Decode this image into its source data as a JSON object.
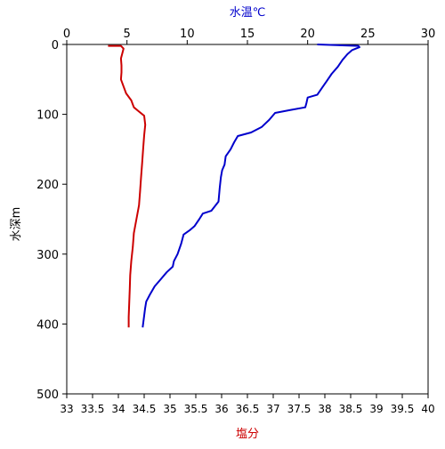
{
  "chart_data": {
    "type": "line",
    "orientation": "vertical-profile",
    "top_axis": {
      "label": "水温℃",
      "label_color": "#0000CC",
      "range": [
        0,
        30
      ],
      "ticks": [
        0,
        5,
        10,
        15,
        20,
        25,
        30
      ],
      "tick_labels": [
        "0",
        "5",
        "10",
        "15",
        "20",
        "25",
        "30"
      ]
    },
    "bottom_axis": {
      "label": "塩分",
      "label_color": "#CC0000",
      "range": [
        33,
        40
      ],
      "ticks": [
        33,
        33.5,
        34,
        34.5,
        35,
        35.5,
        36,
        36.5,
        37,
        37.5,
        38,
        38.5,
        39,
        39.5,
        40
      ],
      "tick_labels": [
        "33",
        "33.5",
        "34",
        "34.5",
        "35",
        "35.5",
        "36",
        "36.5",
        "37",
        "37.5",
        "38",
        "38.5",
        "39",
        "39.5",
        "40"
      ]
    },
    "left_axis": {
      "label": "水深m",
      "range": [
        0,
        500
      ],
      "inverted": true,
      "ticks": [
        0,
        100,
        200,
        300,
        400,
        500
      ],
      "tick_labels": [
        "0",
        "100",
        "200",
        "300",
        "400",
        "500"
      ]
    },
    "grid": false,
    "series": [
      {
        "color": "#0000CC",
        "axis": "top",
        "points": [
          [
            20.8,
            0
          ],
          [
            24.2,
            2
          ],
          [
            24.3,
            4
          ],
          [
            23.7,
            8
          ],
          [
            23.3,
            14
          ],
          [
            22.9,
            22
          ],
          [
            22.5,
            32
          ],
          [
            22.0,
            42
          ],
          [
            21.6,
            52
          ],
          [
            21.2,
            62
          ],
          [
            20.8,
            72
          ],
          [
            20.0,
            76
          ],
          [
            19.9,
            84
          ],
          [
            19.8,
            90
          ],
          [
            18.5,
            94
          ],
          [
            17.3,
            98
          ],
          [
            16.8,
            108
          ],
          [
            16.2,
            118
          ],
          [
            15.3,
            126
          ],
          [
            14.2,
            131
          ],
          [
            13.9,
            140
          ],
          [
            13.6,
            150
          ],
          [
            13.2,
            160
          ],
          [
            13.1,
            172
          ],
          [
            12.9,
            180
          ],
          [
            12.8,
            190
          ],
          [
            12.7,
            205
          ],
          [
            12.6,
            225
          ],
          [
            12.0,
            238
          ],
          [
            11.3,
            242
          ],
          [
            11.0,
            250
          ],
          [
            10.6,
            260
          ],
          [
            10.2,
            266
          ],
          [
            9.7,
            272
          ],
          [
            9.5,
            285
          ],
          [
            9.2,
            300
          ],
          [
            8.9,
            310
          ],
          [
            8.8,
            318
          ],
          [
            8.3,
            326
          ],
          [
            7.8,
            336
          ],
          [
            7.3,
            346
          ],
          [
            6.9,
            358
          ],
          [
            6.6,
            368
          ],
          [
            6.5,
            378
          ],
          [
            6.4,
            392
          ],
          [
            6.3,
            405
          ]
        ]
      },
      {
        "color": "#CC0000",
        "axis": "bottom",
        "points": [
          [
            33.8,
            2
          ],
          [
            34.05,
            2
          ],
          [
            34.1,
            6
          ],
          [
            34.08,
            12
          ],
          [
            34.05,
            20
          ],
          [
            34.06,
            30
          ],
          [
            34.06,
            40
          ],
          [
            34.05,
            50
          ],
          [
            34.1,
            60
          ],
          [
            34.15,
            70
          ],
          [
            34.25,
            80
          ],
          [
            34.3,
            90
          ],
          [
            34.4,
            96
          ],
          [
            34.5,
            102
          ],
          [
            34.52,
            115
          ],
          [
            34.5,
            130
          ],
          [
            34.48,
            150
          ],
          [
            34.46,
            170
          ],
          [
            34.44,
            190
          ],
          [
            34.42,
            210
          ],
          [
            34.4,
            230
          ],
          [
            34.35,
            250
          ],
          [
            34.3,
            270
          ],
          [
            34.28,
            290
          ],
          [
            34.25,
            310
          ],
          [
            34.23,
            330
          ],
          [
            34.22,
            350
          ],
          [
            34.21,
            370
          ],
          [
            34.2,
            390
          ],
          [
            34.2,
            405
          ]
        ]
      }
    ]
  }
}
